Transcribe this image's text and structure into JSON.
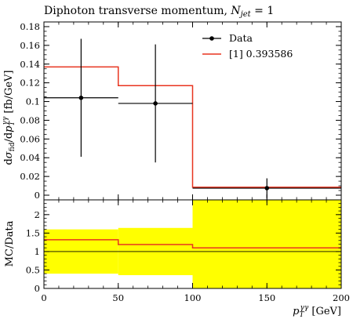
{
  "chart_data": [
    {
      "type": "line",
      "panel": "main",
      "title_prefix": "Diphoton transverse momentum, ",
      "title_var": "N",
      "title_sub": "jet",
      "title_suffix": " = 1",
      "ylabel": "dσ_fid/dp_T^γγ [fb/GeV]",
      "ylabel_parts": {
        "d": "d",
        "sigma": "σ",
        "fid": "fid",
        "mid": "/d",
        "p": "p",
        "T": "T",
        "gg": "γγ",
        "units": " [fb/GeV]"
      },
      "xlim": [
        0,
        200
      ],
      "ylim": [
        -0.005,
        0.185
      ],
      "yticks": [
        "0",
        "0.02",
        "0.04",
        "0.06",
        "0.08",
        "0.1",
        "0.12",
        "0.14",
        "0.16",
        "0.18"
      ],
      "ytick_values": [
        0,
        0.02,
        0.04,
        0.06,
        0.08,
        0.1,
        0.12,
        0.14,
        0.16,
        0.18
      ],
      "legend_position": "top-right",
      "series": [
        {
          "name": "Data",
          "style": "points",
          "color": "#000000",
          "points": [
            {
              "x": 25,
              "xlow": 0,
              "xhigh": 50,
              "y": 0.104,
              "ylow": 0.041,
              "yhigh": 0.167
            },
            {
              "x": 75,
              "xlow": 50,
              "xhigh": 100,
              "y": 0.098,
              "ylow": 0.035,
              "yhigh": 0.161
            },
            {
              "x": 150,
              "xlow": 100,
              "xhigh": 200,
              "y": 0.0075,
              "ylow": -0.003,
              "yhigh": 0.018
            }
          ]
        },
        {
          "name": "[1] 0.393586",
          "style": "step",
          "color": "#e8341f",
          "bins": [
            {
              "xlow": 0,
              "xhigh": 50,
              "y": 0.137
            },
            {
              "xlow": 50,
              "xhigh": 100,
              "y": 0.117
            },
            {
              "xlow": 100,
              "xhigh": 200,
              "y": 0.0085
            }
          ]
        }
      ]
    },
    {
      "type": "line",
      "panel": "ratio",
      "ylabel": "MC/Data",
      "xlabel_p": "p",
      "xlabel_T": "T",
      "xlabel_gg": "γγ",
      "xlabel_units": " [GeV]",
      "xlim": [
        0,
        200
      ],
      "ylim": [
        0,
        2.4
      ],
      "xticks": [
        "0",
        "50",
        "100",
        "150",
        "200"
      ],
      "xtick_values": [
        0,
        50,
        100,
        150,
        200
      ],
      "yticks": [
        "0",
        "0.5",
        "1",
        "1.5",
        "2"
      ],
      "ytick_values": [
        0,
        0.5,
        1,
        1.5,
        2
      ],
      "reference_line": 1,
      "band_color": "#ffff00",
      "band": [
        {
          "xlow": 0,
          "xhigh": 50,
          "low": 0.4,
          "high": 1.6
        },
        {
          "xlow": 50,
          "xhigh": 100,
          "low": 0.36,
          "high": 1.64
        },
        {
          "xlow": 100,
          "xhigh": 200,
          "low": 0,
          "high": 2.4
        }
      ],
      "series": [
        {
          "name": "[1] 0.393586",
          "color": "#e8341f",
          "bins": [
            {
              "xlow": 0,
              "xhigh": 50,
              "y": 1.32
            },
            {
              "xlow": 50,
              "xhigh": 100,
              "y": 1.19
            },
            {
              "xlow": 100,
              "xhigh": 200,
              "y": 1.1
            }
          ]
        }
      ]
    }
  ]
}
